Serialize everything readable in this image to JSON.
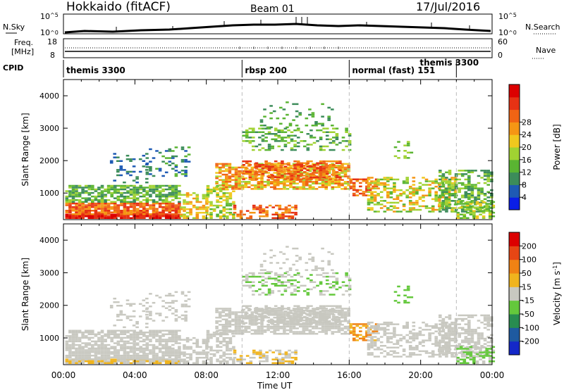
{
  "header": {
    "site": "Hokkaido (fitACF)",
    "beam": "Beam 01",
    "date": "17/Jul/2016"
  },
  "top_panels": {
    "nsky_label": "N.Sky",
    "nsky_ticks": [
      "10^5",
      "10^0"
    ],
    "nsearch_label": "N.Search",
    "nsearch_ticks": [
      "10^5",
      "10^0"
    ],
    "freq_label": "Freq.",
    "freq_unit": "[MHz]",
    "freq_ticks": [
      "18",
      "8"
    ],
    "nave_label": "Nave",
    "nave_ticks": [
      "60",
      "0"
    ],
    "cpid_label": "CPID",
    "cpid_segments": [
      {
        "name": "themis 3300",
        "start_hour": 0
      },
      {
        "name": "rbsp 200",
        "start_hour": 10
      },
      {
        "name": "normal (fast) 151",
        "start_hour": 16
      },
      {
        "name": "themis 3300",
        "start_hour": 22
      }
    ]
  },
  "chart_data": [
    {
      "type": "heatmap",
      "panel": "power",
      "ylabel": "Slant Range [km]",
      "yticks": [
        1000,
        2000,
        3000,
        4000
      ],
      "ylim": [
        180,
        4500
      ],
      "xlim_hours": [
        0,
        24
      ],
      "colorbar_label": "Power [dB]",
      "colorbar_ticks": [
        "4",
        "8",
        "12",
        "16",
        "20",
        "24",
        "28"
      ],
      "colorbar_colors": [
        "#0a1ee6",
        "#1e5ab4",
        "#3c8c5a",
        "#5ab432",
        "#a0d232",
        "#f0c81e",
        "#f59614",
        "#f06414",
        "#e63214",
        "#dc0000"
      ]
    },
    {
      "type": "heatmap",
      "panel": "velocity",
      "ylabel": "Slant Range [km]",
      "yticks": [
        1000,
        2000,
        3000,
        4000
      ],
      "ylim": [
        180,
        4500
      ],
      "xlim_hours": [
        0,
        24
      ],
      "xtick_labels": [
        "00:00",
        "04:00",
        "08:00",
        "12:00",
        "16:00",
        "20:00",
        "00:00"
      ],
      "xlabel": "Time UT",
      "colorbar_label": "Velocity [m s",
      "colorbar_label_sup": "-1",
      "colorbar_label_end": "]",
      "colorbar_ticks": [
        "200",
        "100",
        "50",
        "15",
        "-15",
        "-50",
        "-100",
        "-200"
      ],
      "colorbar_colors": [
        "#1428c8",
        "#1e5aa0",
        "#288c50",
        "#64c83c",
        "#c8c8c0",
        "#f0b41e",
        "#f08214",
        "#e64614",
        "#dc0000"
      ]
    }
  ]
}
